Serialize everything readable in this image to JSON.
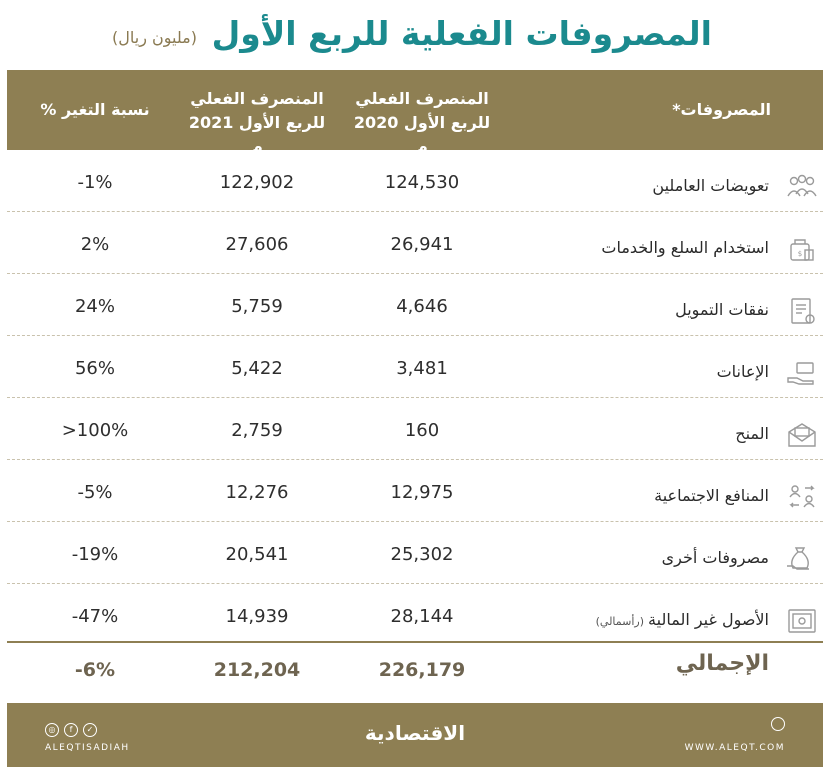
{
  "title": "المصروفات الفعلية للربع الأول",
  "subtitle": "(مليون ريال)",
  "colors": {
    "accent": "#8e7f53",
    "title": "#1b8a8e"
  },
  "chart_data": {
    "type": "table",
    "columns": [
      "المصروفات*",
      "المنصرف الفعلي للربع الأول 2020 م",
      "المنصرف الفعلي للربع الأول 2021 م",
      "نسبة التغير %"
    ],
    "rows": [
      {
        "category": "تعويضات العاملين",
        "note": "",
        "icon": "employees-icon",
        "v2020": "124,530",
        "v2021": "122,902",
        "change": "-1%"
      },
      {
        "category": "استخدام السلع والخدمات",
        "note": "",
        "icon": "goods-bag-icon",
        "v2020": "26,941",
        "v2021": "27,606",
        "change": "2%"
      },
      {
        "category": "نفقات التمويل",
        "note": "",
        "icon": "finance-document-icon",
        "v2020": "4,646",
        "v2021": "5,759",
        "change": "24%"
      },
      {
        "category": "الإعانات",
        "note": "",
        "icon": "subsidy-hand-icon",
        "v2020": "3,481",
        "v2021": "5,422",
        "change": "56%"
      },
      {
        "category": "المنح",
        "note": "",
        "icon": "grant-envelope-icon",
        "v2020": "160",
        "v2021": "2,759",
        "change": ">100%"
      },
      {
        "category": "المنافع الاجتماعية",
        "note": "",
        "icon": "social-benefits-icon",
        "v2020": "12,975",
        "v2021": "12,276",
        "change": "-5%"
      },
      {
        "category": "مصروفات أخرى",
        "note": "",
        "icon": "money-bag-icon",
        "v2020": "25,302",
        "v2021": "20,541",
        "change": "-19%"
      },
      {
        "category": "الأصول غير المالية",
        "note": "(رأسمالي)",
        "icon": "safe-icon",
        "v2020": "28,144",
        "v2021": "14,939",
        "change": "-47%"
      }
    ],
    "total": {
      "category": "الإجمالي",
      "v2020": "226,179",
      "v2021": "212,204",
      "change": "-6%"
    }
  },
  "header": {
    "cat": "المصروفات*",
    "c2020_l1": "المنصرف الفعلي",
    "c2020_l2": "للربع الأول 2020 م",
    "c2021_l1": "المنصرف الفعلي",
    "c2021_l2": "للربع الأول 2021 م",
    "pct": "نسبة التغير %"
  },
  "footer": {
    "brand": "الاقتصادية",
    "handle": "ALEQTISADIAH",
    "web": "WWW.ALEQT.COM"
  }
}
